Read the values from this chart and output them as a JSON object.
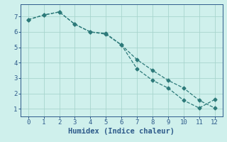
{
  "xlabel": "Humidex (Indice chaleur)",
  "xlim": [
    -0.5,
    12.5
  ],
  "ylim": [
    0.5,
    7.8
  ],
  "xticks": [
    0,
    1,
    2,
    3,
    4,
    5,
    6,
    7,
    8,
    9,
    10,
    11,
    12
  ],
  "yticks": [
    1,
    2,
    3,
    4,
    5,
    6,
    7
  ],
  "line1_x": [
    0,
    1,
    2,
    3,
    4,
    5,
    6,
    7,
    8,
    9,
    10,
    11,
    12
  ],
  "line1_y": [
    6.8,
    7.1,
    7.3,
    6.5,
    6.0,
    5.9,
    5.15,
    3.6,
    2.85,
    2.35,
    1.55,
    1.05,
    1.6
  ],
  "line2_x": [
    0,
    1,
    2,
    3,
    4,
    5,
    6,
    7,
    8,
    9,
    10,
    11,
    12
  ],
  "line2_y": [
    6.8,
    7.1,
    7.3,
    6.5,
    6.0,
    5.85,
    5.15,
    4.2,
    3.5,
    2.85,
    2.35,
    1.55,
    1.05
  ],
  "line_color": "#2d7a7a",
  "bg_color": "#cff0ec",
  "grid_color": "#a8d5ce",
  "font_color": "#2d5a8a",
  "xlabel_fontsize": 7.5,
  "tick_fontsize": 6.5,
  "marker": "D",
  "markersize": 2.5,
  "linewidth": 0.9,
  "linestyle": "--"
}
